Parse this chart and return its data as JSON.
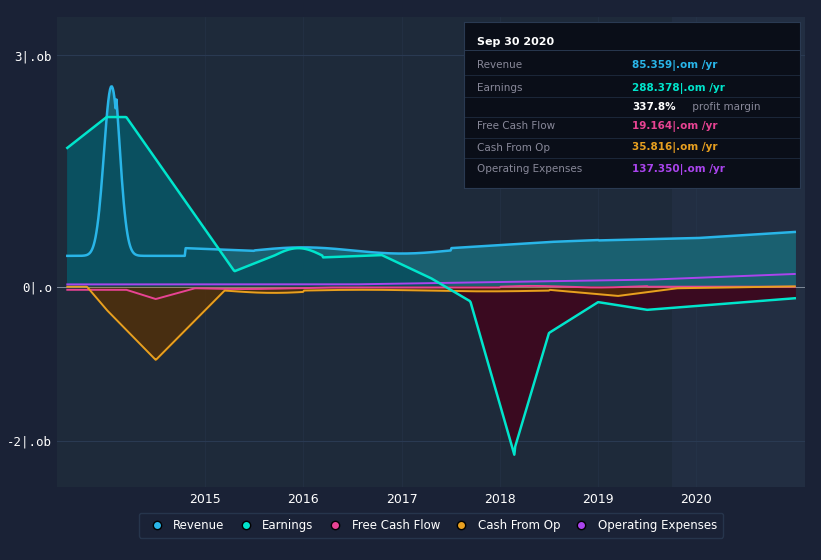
{
  "bg_color": "#1a2236",
  "plot_bg_color": "#1e2a3a",
  "highlight_bg_color": "#222e42",
  "grid_color": "#2a3a52",
  "revenue_color": "#29b5e8",
  "earnings_color": "#00e5cc",
  "fcf_color": "#e84393",
  "cashfromop_color": "#e8a020",
  "opex_color": "#aa44ee",
  "revenue_fill": "#1a6070",
  "earnings_fill_pos": "#0a5060",
  "earnings_fill_neg": "#3a0a20",
  "cashfromop_fill_neg": "#5a3000",
  "y_labels": [
    [
      "3|.ob",
      3.0
    ],
    [
      "0|.o",
      0.0
    ],
    [
      "-2|.ob",
      -2.0
    ]
  ],
  "x_labels": [
    [
      "2015",
      2015
    ],
    [
      "2016",
      2016
    ],
    [
      "2017",
      2017
    ],
    [
      "2018",
      2018
    ],
    [
      "2019",
      2019
    ],
    [
      "2020",
      2020
    ]
  ],
  "xlim": [
    2013.5,
    2021.1
  ],
  "ylim": [
    -2.6,
    3.5
  ],
  "highlight_x_start": 2019.75,
  "highlight_x_end": 2021.1,
  "legend_items": [
    {
      "label": "Revenue",
      "color": "#29b5e8"
    },
    {
      "label": "Earnings",
      "color": "#00e5cc"
    },
    {
      "label": "Free Cash Flow",
      "color": "#e84393"
    },
    {
      "label": "Cash From Op",
      "color": "#e8a020"
    },
    {
      "label": "Operating Expenses",
      "color": "#aa44ee"
    }
  ],
  "tooltip_title": "Sep 30 2020",
  "tooltip_label_color": "#888899",
  "tooltip_bg": "#0a0e18",
  "tooltip_border": "#2a3a52"
}
